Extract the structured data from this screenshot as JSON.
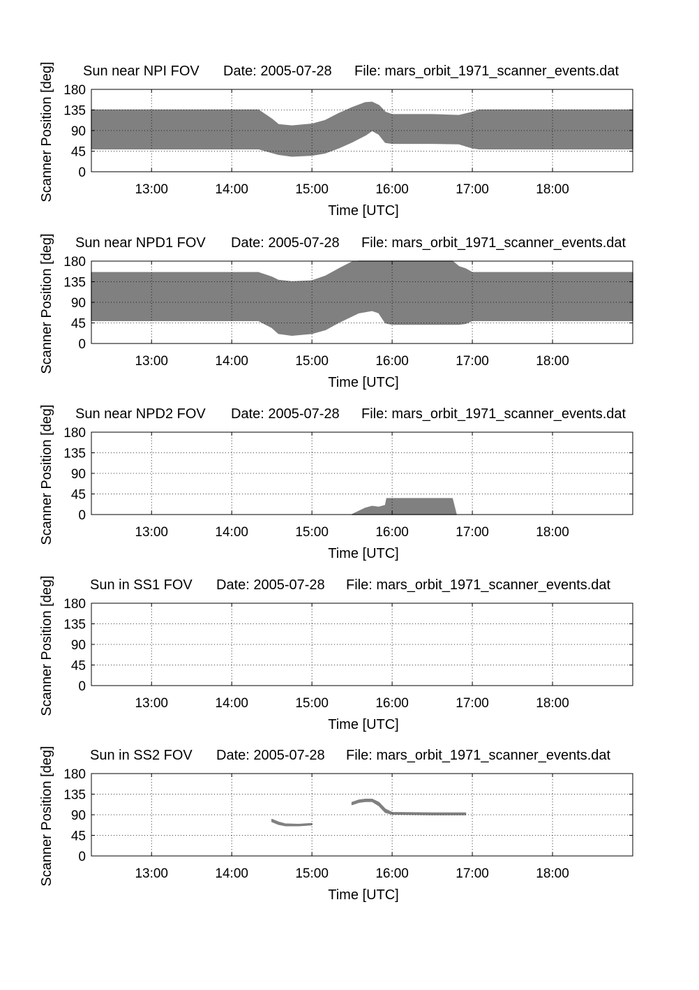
{
  "figure": {
    "background": "#ffffff",
    "fill_color": "#808080"
  },
  "chart_data": [
    {
      "type": "area",
      "title": "Sun near NPI FOV",
      "date_label": "Date: 2005-07-28",
      "file_label": "File: mars_orbit_1971_scanner_events.dat",
      "xlabel": "Time [UTC]",
      "ylabel": "Scanner Position [deg]",
      "xlim": [
        "12:15",
        "19:00"
      ],
      "ylim": [
        0,
        180
      ],
      "xticks": [
        "13:00",
        "14:00",
        "15:00",
        "16:00",
        "17:00",
        "18:00"
      ],
      "yticks": [
        0,
        45,
        90,
        135,
        180
      ],
      "grid": true,
      "series": [
        {
          "points": [
            [
              "12:15",
              50,
              135
            ],
            [
              "14:20",
              50,
              135
            ],
            [
              "14:30",
              42,
              115
            ],
            [
              "14:35",
              38,
              103
            ],
            [
              "14:45",
              34,
              100
            ],
            [
              "15:00",
              36,
              104
            ],
            [
              "15:10",
              41,
              112
            ],
            [
              "15:20",
              52,
              127
            ],
            [
              "15:30",
              65,
              140
            ],
            [
              "15:40",
              80,
              151
            ],
            [
              "15:45",
              90,
              152
            ],
            [
              "15:50",
              82,
              145
            ],
            [
              "15:55",
              64,
              130
            ],
            [
              "16:00",
              62,
              125
            ],
            [
              "16:30",
              62,
              125
            ],
            [
              "16:50",
              61,
              123
            ],
            [
              "17:00",
              52,
              130
            ],
            [
              "17:05",
              50,
              135
            ],
            [
              "19:00",
              50,
              135
            ]
          ]
        }
      ]
    },
    {
      "type": "area",
      "title": "Sun near NPD1 FOV",
      "date_label": "Date: 2005-07-28",
      "file_label": "File: mars_orbit_1971_scanner_events.dat",
      "xlabel": "Time [UTC]",
      "ylabel": "Scanner Position [deg]",
      "xlim": [
        "12:15",
        "19:00"
      ],
      "ylim": [
        0,
        180
      ],
      "xticks": [
        "13:00",
        "14:00",
        "15:00",
        "16:00",
        "17:00",
        "18:00"
      ],
      "yticks": [
        0,
        45,
        90,
        135,
        180
      ],
      "grid": true,
      "series": [
        {
          "points": [
            [
              "12:15",
              50,
              155
            ],
            [
              "14:20",
              50,
              155
            ],
            [
              "14:30",
              35,
              145
            ],
            [
              "14:35",
              22,
              138
            ],
            [
              "14:45",
              18,
              135
            ],
            [
              "15:00",
              22,
              137
            ],
            [
              "15:10",
              30,
              147
            ],
            [
              "15:20",
              46,
              163
            ],
            [
              "15:30",
              60,
              178
            ],
            [
              "15:35",
              67,
              180
            ],
            [
              "15:45",
              72,
              180
            ],
            [
              "15:50",
              67,
              180
            ],
            [
              "15:55",
              45,
              180
            ],
            [
              "16:00",
              42,
              180
            ],
            [
              "16:45",
              42,
              180
            ],
            [
              "16:50",
              42,
              168
            ],
            [
              "16:55",
              44,
              163
            ],
            [
              "17:00",
              50,
              155
            ],
            [
              "19:00",
              50,
              155
            ]
          ]
        }
      ]
    },
    {
      "type": "area",
      "title": "Sun near NPD2 FOV",
      "date_label": "Date: 2005-07-28",
      "file_label": "File: mars_orbit_1971_scanner_events.dat",
      "xlabel": "Time [UTC]",
      "ylabel": "Scanner Position [deg]",
      "xlim": [
        "12:15",
        "19:00"
      ],
      "ylim": [
        0,
        180
      ],
      "xticks": [
        "13:00",
        "14:00",
        "15:00",
        "16:00",
        "17:00",
        "18:00"
      ],
      "yticks": [
        0,
        45,
        90,
        135,
        180
      ],
      "grid": true,
      "series": [
        {
          "points": [
            [
              "15:30",
              0,
              0
            ],
            [
              "15:40",
              0,
              14
            ],
            [
              "15:45",
              0,
              18
            ],
            [
              "15:50",
              0,
              16
            ],
            [
              "15:55",
              0,
              20
            ],
            [
              "15:56",
              0,
              35
            ],
            [
              "16:45",
              0,
              35
            ],
            [
              "16:48",
              0,
              0
            ]
          ]
        }
      ]
    },
    {
      "type": "area",
      "title": "Sun in SS1 FOV",
      "date_label": "Date: 2005-07-28",
      "file_label": "File: mars_orbit_1971_scanner_events.dat",
      "xlabel": "Time [UTC]",
      "ylabel": "Scanner Position [deg]",
      "xlim": [
        "12:15",
        "19:00"
      ],
      "ylim": [
        0,
        180
      ],
      "xticks": [
        "13:00",
        "14:00",
        "15:00",
        "16:00",
        "17:00",
        "18:00"
      ],
      "yticks": [
        0,
        45,
        90,
        135,
        180
      ],
      "grid": true,
      "series": []
    },
    {
      "type": "area",
      "title": "Sun in SS2 FOV",
      "date_label": "Date: 2005-07-28",
      "file_label": "File: mars_orbit_1971_scanner_events.dat",
      "xlabel": "Time [UTC]",
      "ylabel": "Scanner Position [deg]",
      "xlim": [
        "12:15",
        "19:00"
      ],
      "ylim": [
        0,
        180
      ],
      "xticks": [
        "13:00",
        "14:00",
        "15:00",
        "16:00",
        "17:00",
        "18:00"
      ],
      "yticks": [
        0,
        45,
        90,
        135,
        180
      ],
      "grid": true,
      "series": [
        {
          "points": [
            [
              "14:30",
              75,
              80
            ],
            [
              "14:35",
              69,
              74
            ],
            [
              "14:40",
              66,
              70
            ],
            [
              "14:50",
              66,
              69
            ],
            [
              "14:55",
              67,
              70
            ],
            [
              "15:00",
              68,
              71
            ]
          ]
        },
        {
          "points": [
            [
              "15:30",
              112,
              117
            ],
            [
              "15:35",
              117,
              122
            ],
            [
              "15:40",
              119,
              124
            ],
            [
              "15:45",
              119,
              124
            ],
            [
              "15:50",
              110,
              117
            ],
            [
              "15:55",
              95,
              102
            ],
            [
              "16:00",
              91,
              95
            ],
            [
              "16:30",
              90,
              94
            ],
            [
              "16:55",
              90,
              94
            ]
          ]
        }
      ]
    }
  ]
}
